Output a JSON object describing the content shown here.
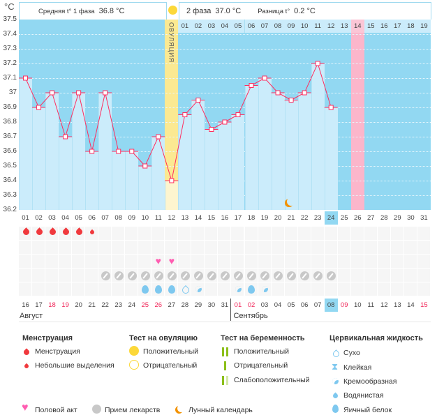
{
  "y_unit": "°C",
  "header": {
    "phase1_label": "Средняя t° 1 фаза",
    "phase1_value": "36.8 °C",
    "phase2_label": "2 фаза",
    "phase2_value": "37.0 °C",
    "diff_label": "Разница t°",
    "diff_value": "0.2 °C"
  },
  "ovulation_label": "ОВУЛЯЦИЯ",
  "chart_data": {
    "type": "line",
    "ylim": [
      36.2,
      37.5
    ],
    "yticks": [
      "37.5",
      "37.4",
      "37.3",
      "37.2",
      "37.1",
      "37",
      "36.9",
      "36.8",
      "36.7",
      "36.6",
      "36.5",
      "36.4",
      "36.3",
      "36.2"
    ],
    "cycle_days": [
      "01",
      "02",
      "03",
      "04",
      "05",
      "06",
      "07",
      "08",
      "09",
      "10",
      "11",
      "12",
      "13",
      "14",
      "15",
      "16",
      "17",
      "18",
      "19",
      "20",
      "21",
      "22",
      "23",
      "24",
      "25",
      "26",
      "27",
      "28",
      "29",
      "30",
      "31"
    ],
    "temperatures": [
      37.1,
      36.9,
      37.0,
      36.7,
      37.0,
      36.6,
      37.0,
      36.6,
      36.6,
      36.5,
      36.7,
      36.4,
      36.85,
      36.95,
      36.75,
      36.8,
      36.85,
      37.05,
      37.1,
      37.0,
      36.95,
      37.0,
      37.2,
      36.9
    ],
    "ovulation_day": 12,
    "current_day": 24,
    "predicted_period_day": 26,
    "moon_day": 21,
    "next_cycle_labels": [
      "01",
      "02",
      "03",
      "04",
      "05",
      "06",
      "07",
      "08",
      "09",
      "10",
      "11",
      "12",
      "13",
      "14",
      "15",
      "16",
      "17",
      "18",
      "19"
    ]
  },
  "menstruation": {
    "heavy": [
      1,
      2,
      3,
      4,
      5
    ],
    "light": [
      6
    ]
  },
  "intercourse_days": [
    11,
    12
  ],
  "medication_days": [
    7,
    8,
    9,
    10,
    11,
    12,
    13,
    14,
    15,
    16,
    17,
    18,
    19,
    20,
    21,
    22,
    23,
    24
  ],
  "cervical": [
    {
      "day": 10,
      "type": "egg"
    },
    {
      "day": 11,
      "type": "egg"
    },
    {
      "day": 12,
      "type": "egg"
    },
    {
      "day": 13,
      "type": "dry"
    },
    {
      "day": 14,
      "type": "creamy"
    },
    {
      "day": 17,
      "type": "creamy"
    },
    {
      "day": 18,
      "type": "egg"
    },
    {
      "day": 19,
      "type": "creamy"
    }
  ],
  "dates": [
    {
      "t": "16"
    },
    {
      "t": "17"
    },
    {
      "t": "18",
      "red": true
    },
    {
      "t": "19",
      "red": true
    },
    {
      "t": "20"
    },
    {
      "t": "21"
    },
    {
      "t": "22"
    },
    {
      "t": "23"
    },
    {
      "t": "24"
    },
    {
      "t": "25",
      "red": true
    },
    {
      "t": "26",
      "red": true
    },
    {
      "t": "27"
    },
    {
      "t": "28"
    },
    {
      "t": "29"
    },
    {
      "t": "30"
    },
    {
      "t": "31"
    },
    {
      "t": "01",
      "red": true
    },
    {
      "t": "02",
      "red": true
    },
    {
      "t": "03"
    },
    {
      "t": "04"
    },
    {
      "t": "05"
    },
    {
      "t": "06"
    },
    {
      "t": "07"
    },
    {
      "t": "08"
    },
    {
      "t": "09",
      "red": true
    },
    {
      "t": "10"
    },
    {
      "t": "11"
    },
    {
      "t": "12"
    },
    {
      "t": "13"
    },
    {
      "t": "14"
    },
    {
      "t": "15",
      "red": true
    }
  ],
  "months": [
    "Август",
    "Сентябрь"
  ],
  "legend": {
    "menstruation": {
      "title": "Менструация",
      "items": [
        "Менструация",
        "Небольшие выделения"
      ]
    },
    "ovulation_test": {
      "title": "Тест на овуляцию",
      "items": [
        "Положительный",
        "Отрицательный"
      ]
    },
    "pregnancy_test": {
      "title": "Тест на беременность",
      "items": [
        "Положительный",
        "Отрицательный",
        "Слабоположительный"
      ]
    },
    "cervical": {
      "title": "Цервикальная жидкость",
      "items": [
        "Сухо",
        "Клейкая",
        "Кремообразная",
        "Водянистая",
        "Яичный белок"
      ]
    },
    "other": [
      "Половой акт",
      "Прием лекарств",
      "Лунный календарь"
    ]
  },
  "colors": {
    "bg": "#92d8f2",
    "bar": "#cbecfb",
    "line": "#ff2d5f",
    "ovulation": "#fbe992",
    "period": "#fbb6cb",
    "blood": "#f0393d",
    "heart": "#ff5db1",
    "pill": "#c8c8c8",
    "drop": "#7ec8ef",
    "moon": "#f39200"
  }
}
